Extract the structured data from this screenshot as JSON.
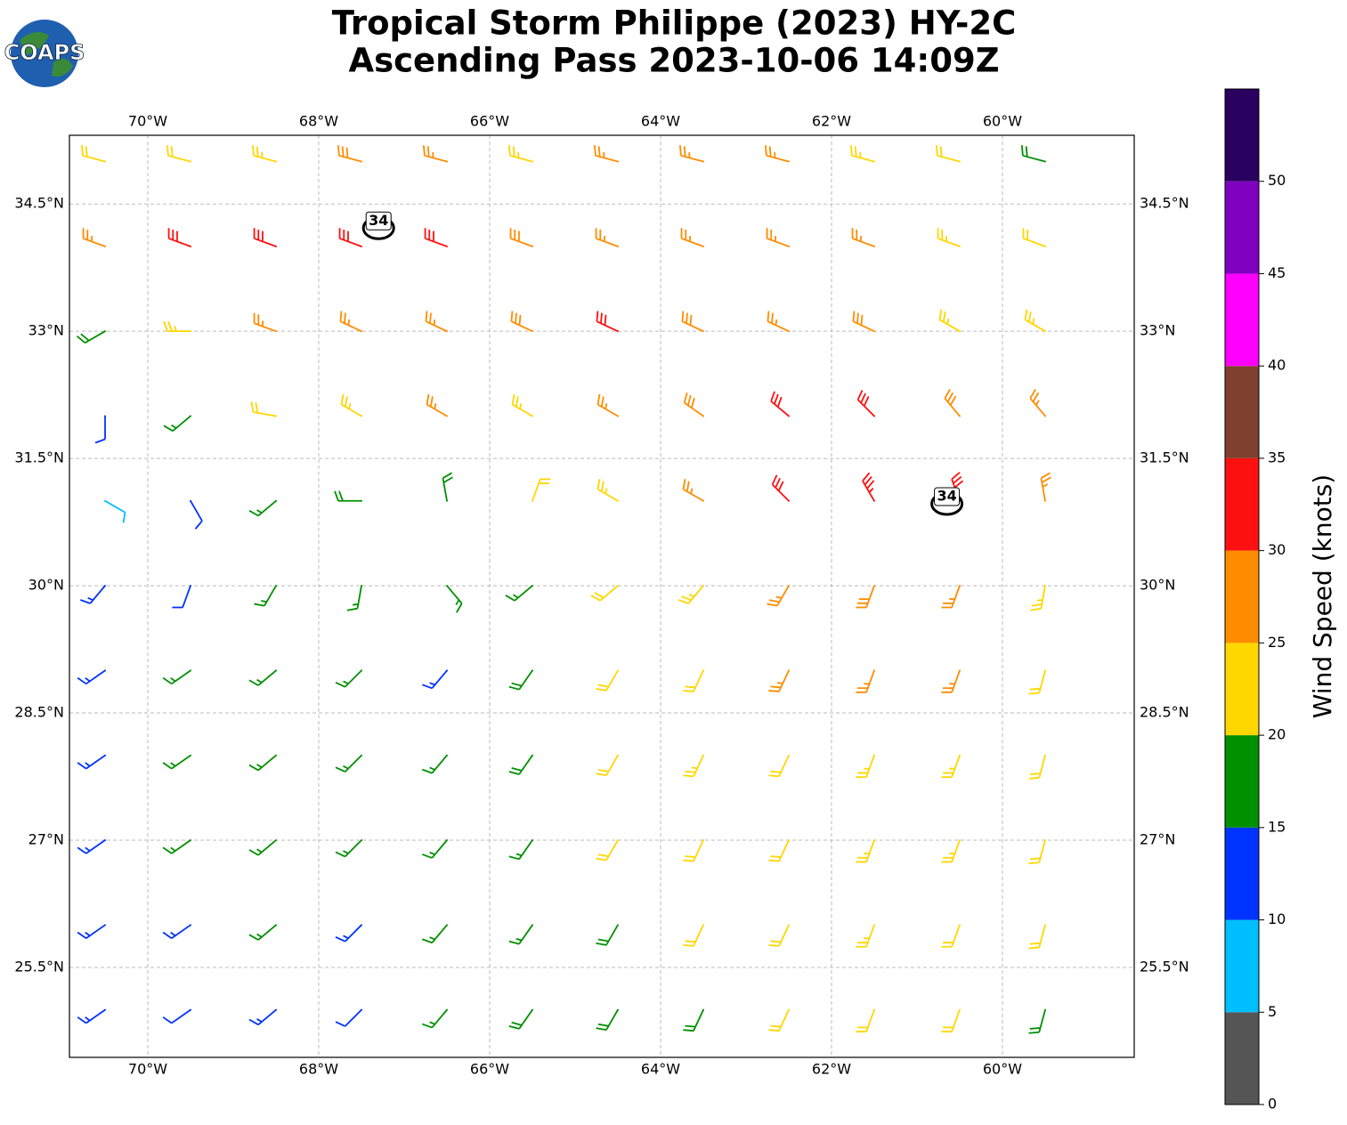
{
  "chart_data": {
    "type": "wind_barbs",
    "title": "Tropical Storm Philippe (2023) HY-2C",
    "subtitle": "Ascending Pass 2023-10-06 14:09Z",
    "logo": "COAPS",
    "xlim": [
      -70.917,
      -58.458
    ],
    "ylim": [
      24.44,
      35.31
    ],
    "xticks": [
      {
        "value": -70,
        "label": "70°W"
      },
      {
        "value": -68,
        "label": "68°W"
      },
      {
        "value": -66,
        "label": "66°W"
      },
      {
        "value": -64,
        "label": "64°W"
      },
      {
        "value": -62,
        "label": "62°W"
      },
      {
        "value": -60,
        "label": "60°W"
      }
    ],
    "yticks": [
      {
        "value": 25.5,
        "label": "25.5°N"
      },
      {
        "value": 27,
        "label": "27°N"
      },
      {
        "value": 28.5,
        "label": "28.5°N"
      },
      {
        "value": 30,
        "label": "30°N"
      },
      {
        "value": 31.5,
        "label": "31.5°N"
      },
      {
        "value": 33,
        "label": "33°N"
      },
      {
        "value": 34.5,
        "label": "34.5°N"
      }
    ],
    "grid": true,
    "colorbar": {
      "label": "Wind Speed (knots)",
      "lim": [
        0,
        55
      ],
      "bounds": [
        0,
        5,
        10,
        15,
        20,
        25,
        30,
        35,
        40,
        45,
        50,
        55
      ],
      "colors": [
        "#555555",
        "#00bfff",
        "#0033ff",
        "#009000",
        "#ffd700",
        "#ff8c00",
        "#ff1010",
        "#804030",
        "#ff00ff",
        "#8000c0",
        "#2a0060"
      ],
      "ticks": [
        0,
        5,
        10,
        15,
        20,
        25,
        30,
        35,
        40,
        45,
        50
      ]
    },
    "contours": [
      {
        "value": 34,
        "lon": -67.3,
        "lat": 34.3
      },
      {
        "value": 34,
        "lon": -60.65,
        "lat": 31.05
      }
    ],
    "barbs": {
      "lons": [
        -70.5,
        -69.5,
        -68.5,
        -67.5,
        -66.5,
        -65.5,
        -64.5,
        -63.5,
        -62.5,
        -61.5,
        -60.5,
        -59.5
      ],
      "lats": [
        35,
        34,
        33,
        32,
        31,
        30,
        29,
        28,
        27,
        26,
        25
      ],
      "speed": [
        [
          22,
          20,
          24,
          28,
          26,
          24,
          26,
          27,
          25,
          23,
          22,
          18
        ],
        [
          27,
          31,
          30,
          32,
          30,
          28,
          27,
          26,
          27,
          25,
          23,
          22
        ],
        [
          18,
          24,
          27,
          27,
          26,
          29,
          31,
          28,
          27,
          28,
          24,
          23
        ],
        [
          12,
          17,
          20,
          23,
          26,
          24,
          27,
          29,
          31,
          30,
          28,
          26
        ],
        [
          8,
          12,
          17,
          19,
          18,
          21,
          24,
          27,
          32,
          33,
          30,
          27
        ],
        [
          13,
          12,
          17,
          17,
          15,
          17,
          22,
          24,
          27,
          28,
          27,
          23
        ],
        [
          14,
          15,
          16,
          15,
          14,
          18,
          21,
          22,
          25,
          27,
          25,
          22
        ],
        [
          13,
          16,
          17,
          15,
          15,
          18,
          21,
          23,
          22,
          24,
          23,
          20
        ],
        [
          13,
          15,
          17,
          16,
          16,
          17,
          20,
          22,
          21,
          23,
          24,
          20
        ],
        [
          13,
          14,
          15,
          13,
          16,
          17,
          19,
          21,
          22,
          23,
          22,
          20
        ],
        [
          13,
          12,
          13,
          12,
          17,
          18,
          19,
          18,
          21,
          22,
          20,
          19
        ]
      ],
      "direction": [
        [
          285,
          285,
          285,
          285,
          285,
          285,
          285,
          285,
          285,
          285,
          285,
          285
        ],
        [
          290,
          290,
          290,
          290,
          290,
          290,
          290,
          290,
          290,
          290,
          290,
          290
        ],
        [
          240,
          270,
          290,
          295,
          295,
          295,
          295,
          295,
          295,
          295,
          300,
          300
        ],
        [
          180,
          230,
          280,
          300,
          300,
          300,
          300,
          305,
          310,
          315,
          320,
          320
        ],
        [
          120,
          150,
          230,
          270,
          350,
          20,
          300,
          300,
          315,
          330,
          340,
          350
        ],
        [
          220,
          200,
          210,
          190,
          140,
          230,
          230,
          220,
          210,
          200,
          200,
          190
        ],
        [
          235,
          235,
          230,
          225,
          220,
          215,
          210,
          205,
          205,
          200,
          200,
          195
        ],
        [
          235,
          235,
          230,
          225,
          220,
          215,
          210,
          205,
          205,
          200,
          200,
          195
        ],
        [
          235,
          235,
          230,
          225,
          220,
          215,
          210,
          205,
          205,
          200,
          200,
          195
        ],
        [
          235,
          235,
          230,
          225,
          220,
          215,
          210,
          205,
          205,
          200,
          200,
          195
        ],
        [
          235,
          235,
          230,
          225,
          220,
          215,
          210,
          205,
          205,
          200,
          200,
          195
        ]
      ]
    }
  }
}
